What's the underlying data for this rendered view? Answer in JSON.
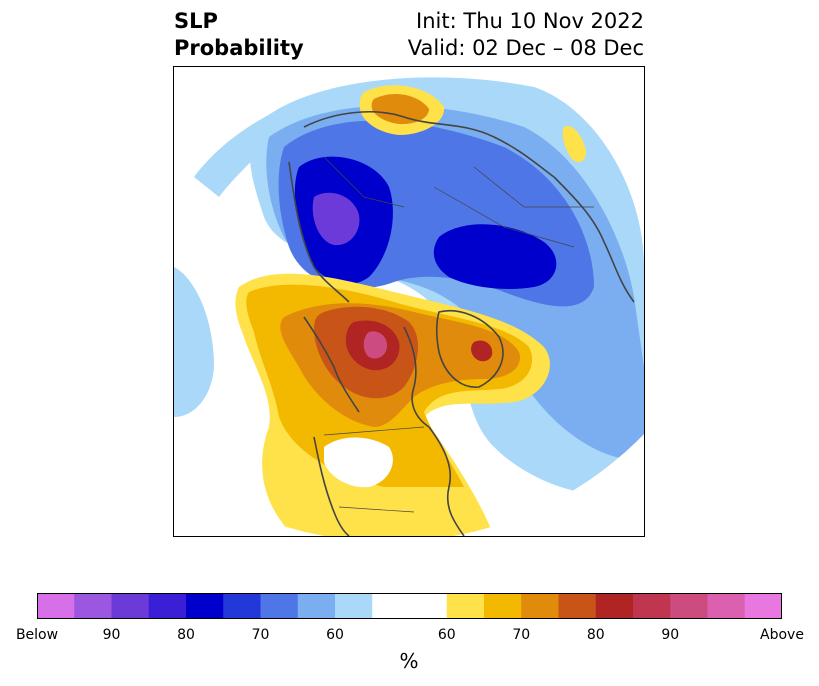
{
  "title": {
    "left_line1": "SLP",
    "left_line2": "Probability",
    "right_line1": "Init: Thu 10 Nov 2022",
    "right_line2": "Valid: 02 Dec – 08 Dec"
  },
  "colorbar": {
    "unit": "%",
    "segments": [
      "#d66fe8",
      "#9b57e0",
      "#6b3ad8",
      "#3a1fd6",
      "#0000cd",
      "#2338d8",
      "#4e76e6",
      "#7aaef0",
      "#aad8f8",
      "#ffffff",
      "#ffe14a",
      "#f3b800",
      "#e08b0c",
      "#c85418",
      "#b02424",
      "#c03650",
      "#cc4c80",
      "#dc60b0",
      "#e878e0"
    ],
    "tick_labels": [
      "Below",
      "90",
      "80",
      "70",
      "60",
      "60",
      "70",
      "80",
      "90",
      "Above"
    ]
  },
  "legend_colors": {
    "below_light": "#aad8f8",
    "below_mid": "#7aaef0",
    "below_strong": "#4e76e6",
    "below_deep": "#0000cd",
    "below_purple": "#6b3ad8",
    "above_light": "#ffe14a",
    "above_mid": "#f3b800",
    "above_strong": "#e08b0c",
    "above_deep": "#c85418",
    "above_red": "#b02424",
    "above_pink": "#cc4c80",
    "coast": "#444444"
  }
}
